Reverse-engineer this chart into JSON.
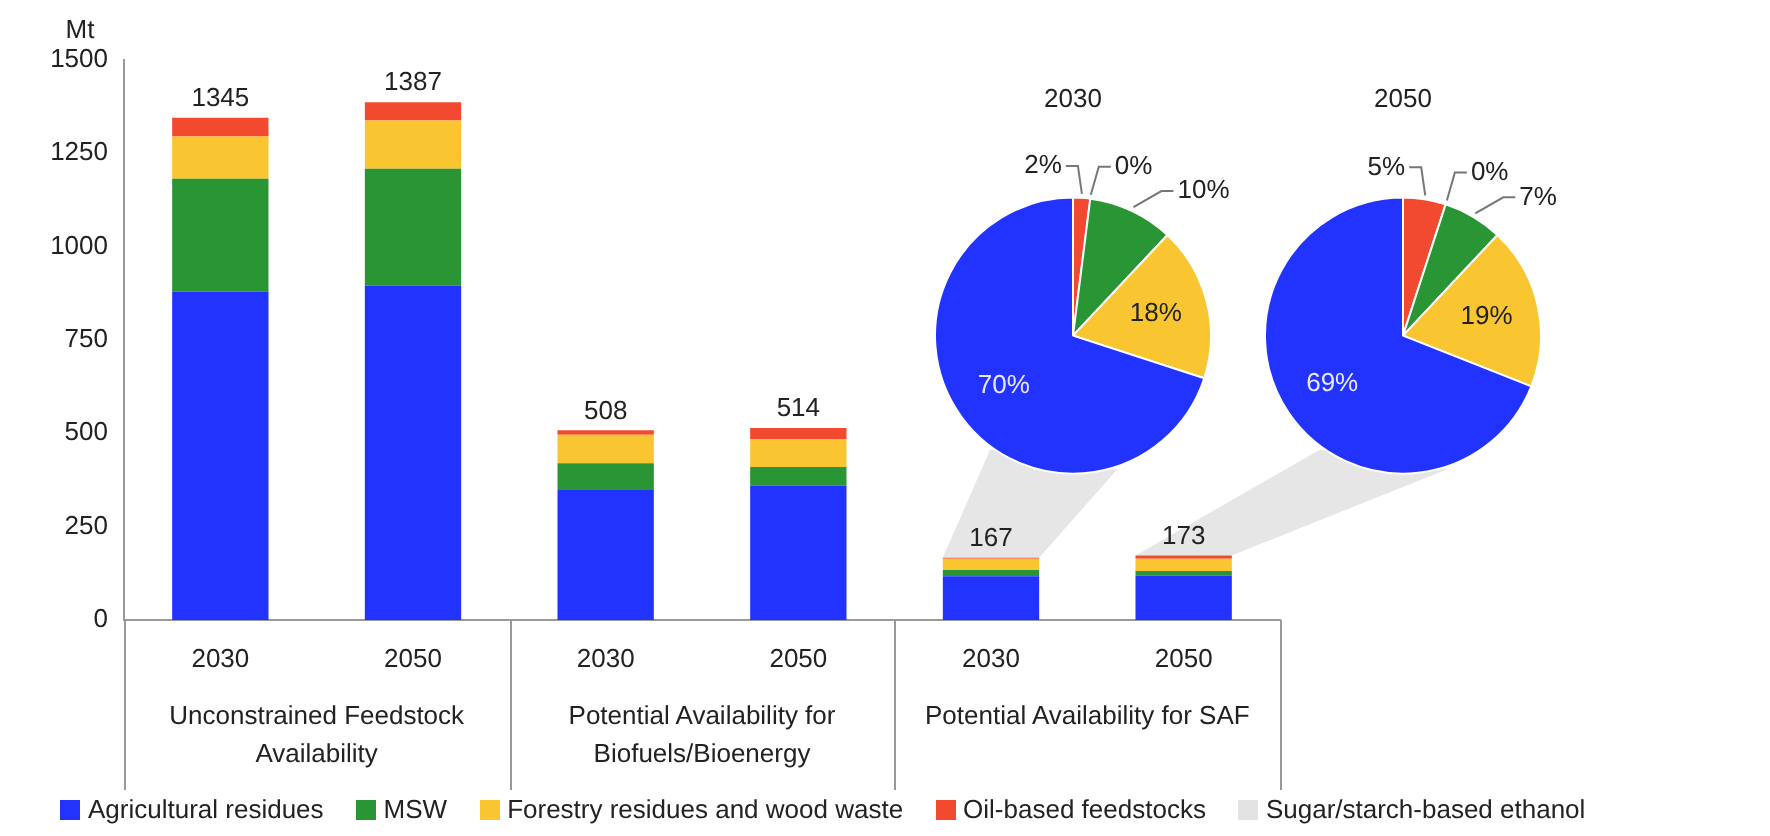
{
  "chart_data": [
    {
      "type": "bar",
      "stacked": true,
      "ylabel": "Mt",
      "categories": [
        "2030",
        "2050",
        "2030",
        "2050",
        "2030",
        "2050"
      ],
      "series": [
        {
          "name": "Agricultural residues",
          "color": "#2233ff",
          "values": [
            880,
            895,
            350,
            360,
            117,
            119
          ]
        },
        {
          "name": "MSW",
          "color": "#2a9535",
          "values": [
            302,
            314,
            70,
            50,
            17,
            12
          ]
        },
        {
          "name": "Forestry residues and wood waste",
          "color": "#f9c632",
          "values": [
            113,
            129,
            76,
            75,
            30,
            33
          ]
        },
        {
          "name": "Oil-based feedstocks",
          "color": "#f24a30",
          "values": [
            50,
            49,
            12,
            29,
            3,
            9
          ]
        },
        {
          "name": "Sugar/starch-based ethanol",
          "color": "#e3e3e3",
          "values": [
            null,
            null,
            null,
            null,
            0,
            0
          ]
        }
      ],
      "totals": [
        "1345",
        "1387",
        "508",
        "514",
        "167",
        "173"
      ],
      "annotations": [
        "Unconstrained Feedstock Availability",
        "Potential Availability for Biofuels/Bioenergy",
        "Potential Availability for SAF"
      ],
      "ylim": [
        0,
        1500
      ],
      "yticks": [
        0,
        250,
        500,
        750,
        1000,
        1250,
        1500
      ],
      "grid": false,
      "legend": "bottom"
    },
    {
      "type": "pie",
      "title": "2030",
      "categories": [
        null,
        null,
        null,
        null,
        null
      ],
      "values": [
        2,
        0,
        10,
        18,
        70
      ],
      "colors": [
        "#f24a30",
        "#e3e3e3",
        "#2a9535",
        "#f9c632",
        "#2233ff"
      ],
      "value_labels": [
        "2%",
        "0%",
        "10%",
        "18%",
        "70%"
      ]
    },
    {
      "type": "pie",
      "title": "2050",
      "categories": [
        null,
        null,
        null,
        null,
        null
      ],
      "values": [
        5,
        0,
        7,
        19,
        69
      ],
      "colors": [
        "#f24a30",
        "#e3e3e3",
        "#2a9535",
        "#f9c632",
        "#2233ff"
      ],
      "value_labels": [
        "5%",
        "0%",
        "7%",
        "19%",
        "69%"
      ]
    }
  ]
}
